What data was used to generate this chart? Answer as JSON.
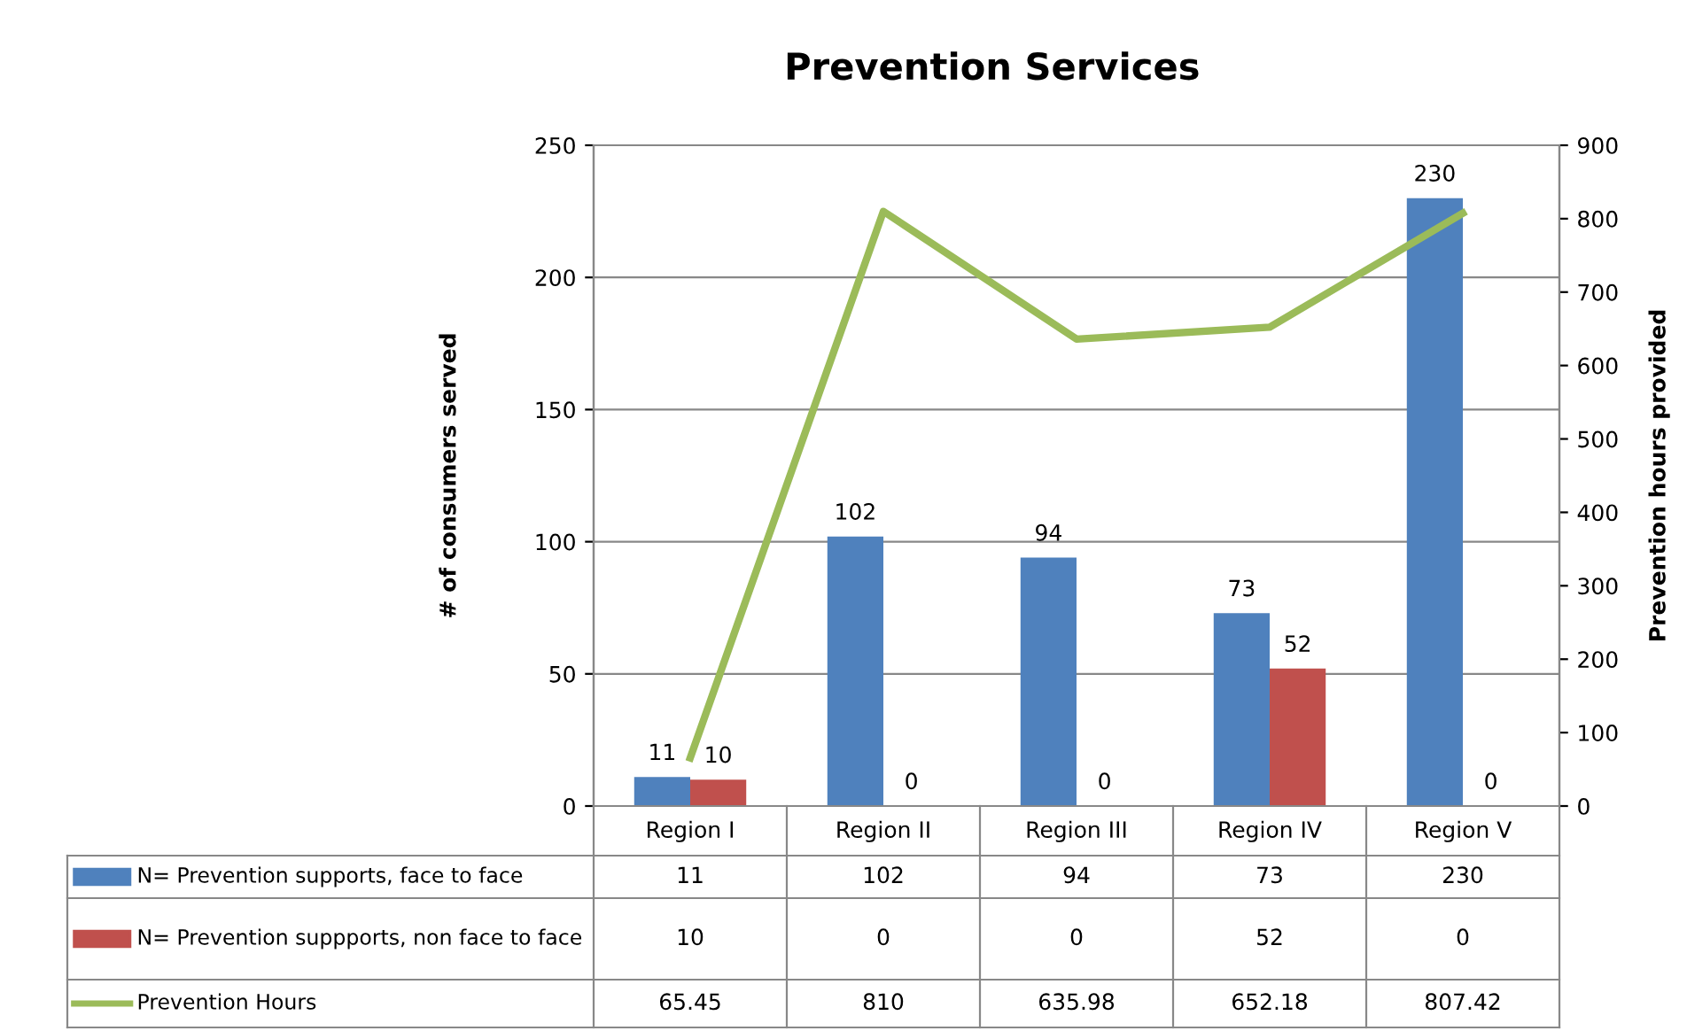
{
  "chart_data": {
    "type": "bar",
    "title": "Prevention Services",
    "categories": [
      "Region I",
      "Region II",
      "Region III",
      "Region IV",
      "Region V"
    ],
    "series": [
      {
        "name": "N= Prevention supports, face to face",
        "color": "#4f81bd",
        "values": [
          11,
          102,
          94,
          73,
          230
        ]
      },
      {
        "name": "N= Prevention suppports, non face to face",
        "color": "#c0504d",
        "values": [
          10,
          0,
          0,
          52,
          0
        ]
      },
      {
        "name": "Prevention Hours",
        "type": "line",
        "axis": "y2",
        "color": "#9bbb59",
        "values": [
          65.45,
          810,
          635.98,
          652.18,
          807.42
        ]
      }
    ],
    "ylabel": "# of consumers served",
    "y2label": "Prevention hours provided",
    "ylim": [
      0,
      250
    ],
    "yticks": [
      0,
      50,
      100,
      150,
      200,
      250
    ],
    "y2lim": [
      0,
      900
    ],
    "y2ticks": [
      0,
      100,
      200,
      300,
      400,
      500,
      600,
      700,
      800,
      900
    ],
    "annotations": [
      {
        "text": "11",
        "x": "Region I",
        "y": 11
      },
      {
        "text": "102",
        "x": "Region II",
        "y": 102
      },
      {
        "text": "94",
        "x": "Region III",
        "y": 94
      },
      {
        "text": "73",
        "x": "Region IV",
        "y": 73
      },
      {
        "text": "230",
        "x": "Region V",
        "y": 230
      },
      {
        "text": "10",
        "x": "Region I",
        "y": 10
      },
      {
        "text": "0",
        "x": "Region II",
        "y": 0
      },
      {
        "text": "0",
        "x": "Region III",
        "y": 0
      },
      {
        "text": "52",
        "x": "Region IV",
        "y": 52
      },
      {
        "text": "0",
        "x": "Region V",
        "y": 0
      }
    ],
    "grid": "y",
    "legend": "bottom",
    "data_labels": true,
    "marker": "none",
    "line_style": "solid"
  }
}
